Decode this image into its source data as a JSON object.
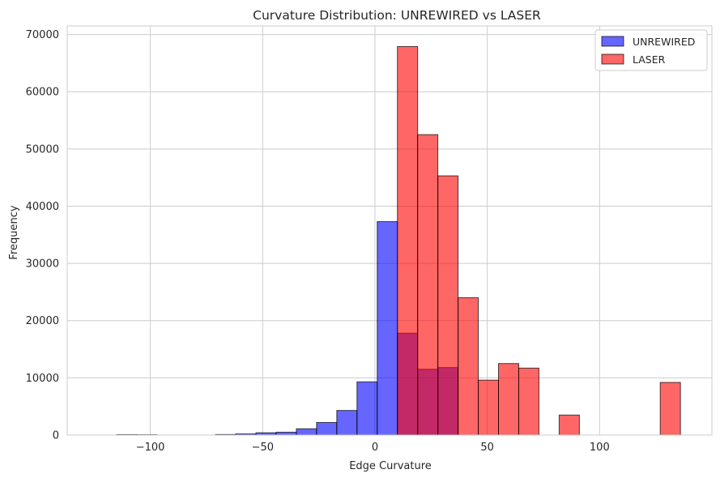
{
  "chart_data": {
    "type": "bar",
    "title": "Curvature Distribution: UNREWIRED vs LASER",
    "xlabel": "Edge Curvature",
    "ylabel": "Frequency",
    "xlim": [
      -137,
      150
    ],
    "ylim": [
      0,
      71500
    ],
    "xticks": [
      -100,
      -50,
      0,
      50,
      100
    ],
    "xtick_labels": [
      "−100",
      "−50",
      "0",
      "50",
      "100"
    ],
    "yticks": [
      0,
      10000,
      20000,
      30000,
      40000,
      50000,
      60000,
      70000
    ],
    "ytick_labels": [
      "0",
      "10000",
      "20000",
      "30000",
      "40000",
      "50000",
      "60000",
      "70000"
    ],
    "grid": true,
    "legend_position": "top-right",
    "series": [
      {
        "name": "UNREWIRED",
        "color": "#0000ff",
        "bins": [
          {
            "x0": -115,
            "x1": -106,
            "value": 80
          },
          {
            "x0": -106,
            "x1": -97,
            "value": 60
          },
          {
            "x0": -71,
            "x1": -62,
            "value": 100
          },
          {
            "x0": -62,
            "x1": -53,
            "value": 200
          },
          {
            "x0": -53,
            "x1": -44,
            "value": 400
          },
          {
            "x0": -44,
            "x1": -35,
            "value": 500
          },
          {
            "x0": -35,
            "x1": -26,
            "value": 1100
          },
          {
            "x0": -26,
            "x1": -17,
            "value": 2200
          },
          {
            "x0": -17,
            "x1": -8,
            "value": 4300
          },
          {
            "x0": -8,
            "x1": 1,
            "value": 9300
          },
          {
            "x0": 1,
            "x1": 10,
            "value": 37300
          },
          {
            "x0": 10,
            "x1": 19,
            "value": 17800
          },
          {
            "x0": 19,
            "x1": 28,
            "value": 11500
          },
          {
            "x0": 28,
            "x1": 37,
            "value": 11800
          }
        ]
      },
      {
        "name": "LASER",
        "color": "#ff0000",
        "bins": [
          {
            "x0": 10,
            "x1": 19,
            "value": 67900
          },
          {
            "x0": 19,
            "x1": 28,
            "value": 52500
          },
          {
            "x0": 28,
            "x1": 37,
            "value": 45300
          },
          {
            "x0": 37,
            "x1": 46,
            "value": 24000
          },
          {
            "x0": 46,
            "x1": 55,
            "value": 9600
          },
          {
            "x0": 55,
            "x1": 64,
            "value": 12500
          },
          {
            "x0": 64,
            "x1": 73,
            "value": 11700
          },
          {
            "x0": 82,
            "x1": 91,
            "value": 3500
          },
          {
            "x0": 127,
            "x1": 136,
            "value": 9200
          }
        ]
      }
    ]
  }
}
